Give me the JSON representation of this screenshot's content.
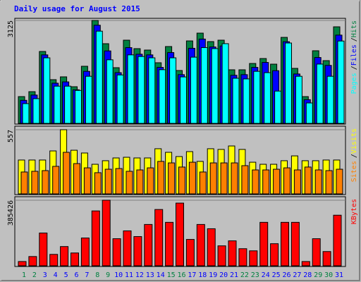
{
  "chart_data": [
    {
      "type": "bar",
      "title": "Daily usage for August 2015",
      "legend_separator": "/",
      "ylim": [
        0,
        3125
      ],
      "yticks": [
        3125
      ],
      "series": [
        {
          "name": "Hits",
          "color": "#008040",
          "values": [
            813,
            963,
            2183,
            1327,
            1413,
            1113,
            1734,
            3125,
            2419,
            1691,
            2526,
            2269,
            2226,
            1841,
            2333,
            1605,
            2504,
            2740,
            2483,
            2526,
            1627,
            1627,
            1819,
            1969,
            1798,
            2611,
            1670,
            813,
            2205,
            1905,
            2932
          ]
        },
        {
          "name": "Files",
          "color": "#0000ff",
          "values": [
            700,
            860,
            2080,
            1220,
            1260,
            1020,
            1580,
            2980,
            2200,
            1540,
            2300,
            2100,
            2080,
            1700,
            2150,
            1480,
            2280,
            2560,
            2320,
            2350,
            1460,
            1480,
            1700,
            1850,
            1600,
            2480,
            1500,
            720,
            2000,
            1760,
            2680
          ]
        },
        {
          "name": "Pages",
          "color": "#00ffff",
          "values": [
            600,
            750,
            1990,
            1130,
            1130,
            1000,
            1430,
            2800,
            1930,
            1470,
            2080,
            2030,
            1990,
            1630,
            1990,
            1410,
            2010,
            2300,
            2270,
            2420,
            1370,
            1350,
            1580,
            1540,
            980,
            2440,
            1430,
            620,
            1800,
            1430,
            2500
          ]
        }
      ]
    },
    {
      "type": "bar",
      "legend_separator": "/",
      "ylim": [
        0,
        557
      ],
      "yticks": [
        557
      ],
      "series": [
        {
          "name": "Visits",
          "color": "#ffff00",
          "values": [
            294,
            294,
            294,
            373,
            557,
            379,
            355,
            257,
            288,
            312,
            318,
            312,
            312,
            392,
            361,
            324,
            367,
            282,
            392,
            386,
            416,
            386,
            275,
            257,
            257,
            288,
            330,
            288,
            288,
            294,
            294
          ]
        },
        {
          "name": "Sites",
          "color": "#ff8000",
          "values": [
            190,
            196,
            202,
            239,
            361,
            263,
            226,
            184,
            214,
            220,
            196,
            208,
            226,
            282,
            269,
            233,
            275,
            190,
            269,
            269,
            269,
            245,
            208,
            208,
            214,
            226,
            208,
            233,
            208,
            202,
            214
          ]
        }
      ]
    },
    {
      "type": "bar",
      "ylim": [
        0,
        385426
      ],
      "yticks": [
        385426
      ],
      "categories": [
        "1",
        "2",
        "3",
        "4",
        "5",
        "6",
        "7",
        "8",
        "9",
        "10",
        "11",
        "12",
        "13",
        "14",
        "15",
        "16",
        "17",
        "18",
        "19",
        "20",
        "21",
        "22",
        "23",
        "24",
        "25",
        "26",
        "27",
        "28",
        "29",
        "30",
        "31"
      ],
      "label_colors": [
        "#008040",
        "#008040",
        "#0000ff",
        "#0000ff",
        "#0000ff",
        "#0000ff",
        "#0000ff",
        "#008040",
        "#008040",
        "#0000ff",
        "#0000ff",
        "#0000ff",
        "#0000ff",
        "#0000ff",
        "#008040",
        "#008040",
        "#0000ff",
        "#0000ff",
        "#0000ff",
        "#0000ff",
        "#0000ff",
        "#008040",
        "#008040",
        "#0000ff",
        "#0000ff",
        "#0000ff",
        "#0000ff",
        "#0000ff",
        "#008040",
        "#008040",
        "#0000ff"
      ],
      "series": [
        {
          "name": "KBytes",
          "color": "#ff0000",
          "values": [
            25134,
            54457,
            192694,
            67024,
            113103,
            75402,
            163371,
            322553,
            385426,
            159182,
            205261,
            171749,
            242962,
            330931,
            255529,
            368632,
            154993,
            242962,
            217828,
            117292,
            146615,
            100536,
            87969,
            255529,
            129859,
            255529,
            255529,
            25134,
            159182,
            83780,
            297419
          ]
        }
      ]
    }
  ]
}
